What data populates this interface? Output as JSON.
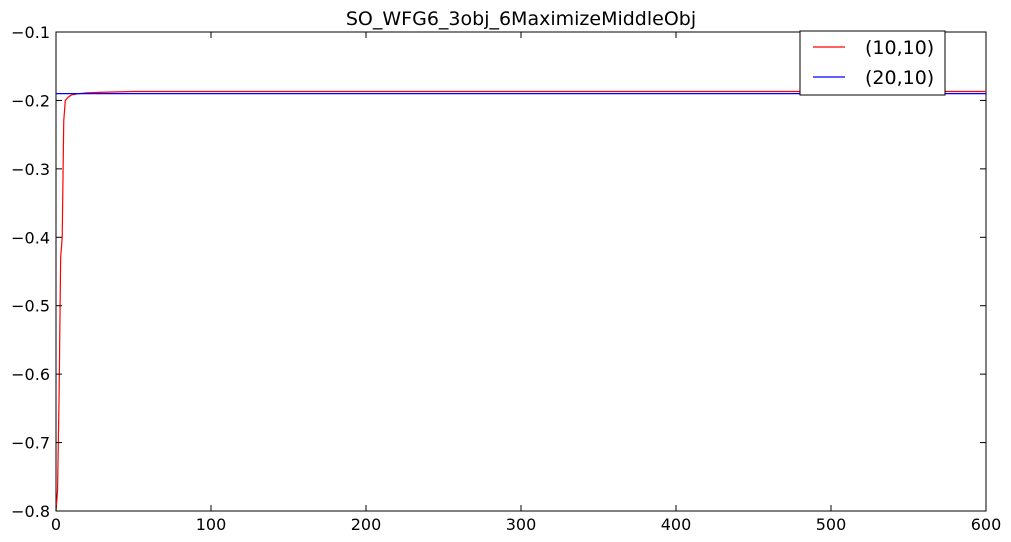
{
  "chart_data": {
    "type": "line",
    "title": "SO_WFG6_3obj_6MaximizeMiddleObj",
    "xlabel": "",
    "ylabel": "",
    "xlim": [
      0,
      600
    ],
    "ylim": [
      -0.8,
      -0.1
    ],
    "x_ticks": [
      0,
      100,
      200,
      300,
      400,
      500,
      600
    ],
    "x_tick_labels": [
      "0",
      "100",
      "200",
      "300",
      "400",
      "500",
      "600"
    ],
    "y_ticks": [
      -0.1,
      -0.2,
      -0.3,
      -0.4,
      -0.5,
      -0.6,
      -0.7,
      -0.8
    ],
    "y_tick_labels": [
      "−0.1",
      "−0.2",
      "−0.3",
      "−0.4",
      "−0.5",
      "−0.6",
      "−0.7",
      "−0.8"
    ],
    "grid": false,
    "legend_position": "top-right",
    "series": [
      {
        "name": "(10,10)",
        "color": "#ff0000",
        "points": [
          [
            0,
            -0.8
          ],
          [
            1,
            -0.77
          ],
          [
            2,
            -0.63
          ],
          [
            3,
            -0.43
          ],
          [
            4,
            -0.4
          ],
          [
            5,
            -0.23
          ],
          [
            6,
            -0.2
          ],
          [
            8,
            -0.195
          ],
          [
            10,
            -0.192
          ],
          [
            15,
            -0.19
          ],
          [
            20,
            -0.189
          ],
          [
            30,
            -0.188
          ],
          [
            50,
            -0.187
          ],
          [
            100,
            -0.187
          ],
          [
            200,
            -0.187
          ],
          [
            300,
            -0.187
          ],
          [
            400,
            -0.187
          ],
          [
            500,
            -0.187
          ],
          [
            600,
            -0.187
          ]
        ]
      },
      {
        "name": "(20,10)",
        "color": "#0000ff",
        "points": [
          [
            0,
            -0.19
          ],
          [
            5,
            -0.19
          ],
          [
            10,
            -0.19
          ],
          [
            15,
            -0.19
          ],
          [
            20,
            -0.19
          ],
          [
            50,
            -0.19
          ],
          [
            100,
            -0.19
          ],
          [
            200,
            -0.19
          ],
          [
            300,
            -0.19
          ],
          [
            400,
            -0.19
          ],
          [
            500,
            -0.19
          ],
          [
            600,
            -0.19
          ]
        ]
      }
    ]
  }
}
